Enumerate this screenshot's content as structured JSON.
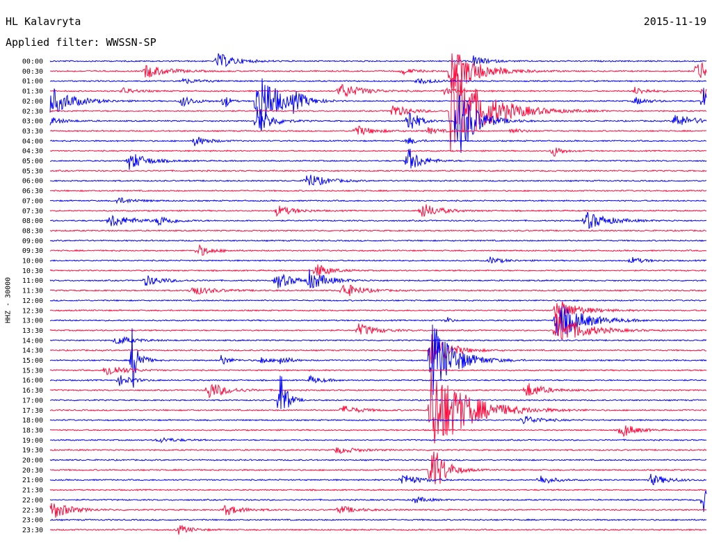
{
  "header": {
    "station": "HL Kalavryta",
    "filter": "Applied filter: WWSSN-SP",
    "date": "2015-11-19"
  },
  "axis": {
    "ylabel": "HHZ - 30000"
  },
  "colors": {
    "even_trace": "#0000ff",
    "odd_trace": "#ff0a3c",
    "background": "#ffffff",
    "text": "#000000"
  },
  "chart_data": {
    "type": "line",
    "title": "",
    "row_labels": [
      "00:00",
      "00:30",
      "01:00",
      "01:30",
      "02:00",
      "02:30",
      "03:00",
      "03:30",
      "04:00",
      "04:30",
      "05:00",
      "05:30",
      "06:00",
      "06:30",
      "07:00",
      "07:30",
      "08:00",
      "08:30",
      "09:00",
      "09:30",
      "10:00",
      "10:30",
      "11:00",
      "11:30",
      "12:00",
      "12:30",
      "13:00",
      "13:30",
      "14:00",
      "14:30",
      "15:00",
      "15:30",
      "16:00",
      "16:30",
      "17:00",
      "17:30",
      "18:00",
      "18:30",
      "19:00",
      "19:30",
      "20:00",
      "20:30",
      "21:00",
      "21:30",
      "22:00",
      "22:30",
      "23:00",
      "23:30"
    ],
    "x_range_minutes": [
      0,
      30
    ],
    "events": [
      {
        "row": 0,
        "t": 0.255,
        "amp": 12,
        "dur": 0.04
      },
      {
        "row": 0,
        "t": 0.645,
        "amp": 8,
        "dur": 0.03
      },
      {
        "row": 1,
        "t": 0.145,
        "amp": 10,
        "dur": 0.05
      },
      {
        "row": 1,
        "t": 0.535,
        "amp": 5,
        "dur": 0.03
      },
      {
        "row": 1,
        "t": 0.61,
        "amp": 35,
        "dur": 0.06
      },
      {
        "row": 1,
        "t": 0.985,
        "amp": 22,
        "dur": 0.02
      },
      {
        "row": 2,
        "t": 0.2,
        "amp": 4,
        "dur": 0.04
      },
      {
        "row": 2,
        "t": 0.56,
        "amp": 4,
        "dur": 0.04
      },
      {
        "row": 3,
        "t": 0.11,
        "amp": 5,
        "dur": 0.03
      },
      {
        "row": 3,
        "t": 0.44,
        "amp": 12,
        "dur": 0.05
      },
      {
        "row": 3,
        "t": 0.6,
        "amp": 5,
        "dur": 0.03
      },
      {
        "row": 3,
        "t": 0.89,
        "amp": 6,
        "dur": 0.03
      },
      {
        "row": 3,
        "t": 0.995,
        "amp": 20,
        "dur": 0.02
      },
      {
        "row": 4,
        "t": 0.0,
        "amp": 22,
        "dur": 0.05
      },
      {
        "row": 4,
        "t": 0.2,
        "amp": 8,
        "dur": 0.03
      },
      {
        "row": 4,
        "t": 0.265,
        "amp": 15,
        "dur": 0.01
      },
      {
        "row": 4,
        "t": 0.315,
        "amp": 60,
        "dur": 0.04
      },
      {
        "row": 4,
        "t": 0.37,
        "amp": 12,
        "dur": 0.03
      },
      {
        "row": 4,
        "t": 0.89,
        "amp": 6,
        "dur": 0.03
      },
      {
        "row": 4,
        "t": 0.995,
        "amp": 20,
        "dur": 0.02
      },
      {
        "row": 5,
        "t": 0.52,
        "amp": 10,
        "dur": 0.04
      },
      {
        "row": 5,
        "t": 0.61,
        "amp": 70,
        "dur": 0.08
      },
      {
        "row": 6,
        "t": 0.0,
        "amp": 6,
        "dur": 0.03
      },
      {
        "row": 6,
        "t": 0.315,
        "amp": 25,
        "dur": 0.03
      },
      {
        "row": 6,
        "t": 0.545,
        "amp": 25,
        "dur": 0.02
      },
      {
        "row": 6,
        "t": 0.62,
        "amp": 60,
        "dur": 0.04
      },
      {
        "row": 6,
        "t": 0.95,
        "amp": 10,
        "dur": 0.05
      },
      {
        "row": 7,
        "t": 0.465,
        "amp": 8,
        "dur": 0.04
      },
      {
        "row": 7,
        "t": 0.575,
        "amp": 5,
        "dur": 0.03
      },
      {
        "row": 7,
        "t": 0.7,
        "amp": 4,
        "dur": 0.03
      },
      {
        "row": 8,
        "t": 0.22,
        "amp": 8,
        "dur": 0.03
      },
      {
        "row": 8,
        "t": 0.545,
        "amp": 6,
        "dur": 0.02
      },
      {
        "row": 9,
        "t": 0.765,
        "amp": 10,
        "dur": 0.02
      },
      {
        "row": 10,
        "t": 0.12,
        "amp": 14,
        "dur": 0.04
      },
      {
        "row": 10,
        "t": 0.545,
        "amp": 20,
        "dur": 0.03
      },
      {
        "row": 12,
        "t": 0.39,
        "amp": 12,
        "dur": 0.04
      },
      {
        "row": 14,
        "t": 0.1,
        "amp": 5,
        "dur": 0.04
      },
      {
        "row": 15,
        "t": 0.345,
        "amp": 8,
        "dur": 0.04
      },
      {
        "row": 15,
        "t": 0.565,
        "amp": 12,
        "dur": 0.04
      },
      {
        "row": 16,
        "t": 0.09,
        "amp": 10,
        "dur": 0.05
      },
      {
        "row": 16,
        "t": 0.165,
        "amp": 8,
        "dur": 0.03
      },
      {
        "row": 16,
        "t": 0.815,
        "amp": 14,
        "dur": 0.05
      },
      {
        "row": 19,
        "t": 0.225,
        "amp": 9,
        "dur": 0.03
      },
      {
        "row": 20,
        "t": 0.67,
        "amp": 5,
        "dur": 0.03
      },
      {
        "row": 20,
        "t": 0.885,
        "amp": 5,
        "dur": 0.03
      },
      {
        "row": 21,
        "t": 0.405,
        "amp": 12,
        "dur": 0.03
      },
      {
        "row": 22,
        "t": 0.145,
        "amp": 8,
        "dur": 0.04
      },
      {
        "row": 22,
        "t": 0.345,
        "amp": 12,
        "dur": 0.04
      },
      {
        "row": 22,
        "t": 0.395,
        "amp": 14,
        "dur": 0.04
      },
      {
        "row": 23,
        "t": 0.215,
        "amp": 7,
        "dur": 0.05
      },
      {
        "row": 23,
        "t": 0.445,
        "amp": 12,
        "dur": 0.04
      },
      {
        "row": 25,
        "t": 0.77,
        "amp": 18,
        "dur": 0.05
      },
      {
        "row": 26,
        "t": 0.605,
        "amp": 5,
        "dur": 0.01
      },
      {
        "row": 26,
        "t": 0.77,
        "amp": 30,
        "dur": 0.06
      },
      {
        "row": 27,
        "t": 0.47,
        "amp": 10,
        "dur": 0.04
      },
      {
        "row": 27,
        "t": 0.77,
        "amp": 25,
        "dur": 0.06
      },
      {
        "row": 28,
        "t": 0.1,
        "amp": 7,
        "dur": 0.04
      },
      {
        "row": 29,
        "t": 0.58,
        "amp": 30,
        "dur": 0.04
      },
      {
        "row": 30,
        "t": 0.125,
        "amp": 50,
        "dur": 0.015
      },
      {
        "row": 30,
        "t": 0.26,
        "amp": 8,
        "dur": 0.02
      },
      {
        "row": 30,
        "t": 0.32,
        "amp": 6,
        "dur": 0.02
      },
      {
        "row": 30,
        "t": 0.35,
        "amp": 8,
        "dur": 0.02
      },
      {
        "row": 30,
        "t": 0.58,
        "amp": 60,
        "dur": 0.05
      },
      {
        "row": 31,
        "t": 0.085,
        "amp": 10,
        "dur": 0.04
      },
      {
        "row": 32,
        "t": 0.105,
        "amp": 8,
        "dur": 0.03
      },
      {
        "row": 32,
        "t": 0.395,
        "amp": 6,
        "dur": 0.03
      },
      {
        "row": 33,
        "t": 0.24,
        "amp": 14,
        "dur": 0.04
      },
      {
        "row": 33,
        "t": 0.725,
        "amp": 12,
        "dur": 0.04
      },
      {
        "row": 34,
        "t": 0.35,
        "amp": 50,
        "dur": 0.015
      },
      {
        "row": 35,
        "t": 0.445,
        "amp": 7,
        "dur": 0.04
      },
      {
        "row": 35,
        "t": 0.58,
        "amp": 70,
        "dur": 0.08
      },
      {
        "row": 36,
        "t": 0.72,
        "amp": 7,
        "dur": 0.04
      },
      {
        "row": 37,
        "t": 0.87,
        "amp": 12,
        "dur": 0.03
      },
      {
        "row": 38,
        "t": 0.165,
        "amp": 4,
        "dur": 0.04
      },
      {
        "row": 39,
        "t": 0.435,
        "amp": 5,
        "dur": 0.05
      },
      {
        "row": 41,
        "t": 0.58,
        "amp": 45,
        "dur": 0.03
      },
      {
        "row": 42,
        "t": 0.535,
        "amp": 9,
        "dur": 0.04
      },
      {
        "row": 42,
        "t": 0.745,
        "amp": 8,
        "dur": 0.03
      },
      {
        "row": 42,
        "t": 0.915,
        "amp": 8,
        "dur": 0.04
      },
      {
        "row": 44,
        "t": 0.555,
        "amp": 5,
        "dur": 0.03
      },
      {
        "row": 44,
        "t": 0.995,
        "amp": 18,
        "dur": 0.02
      },
      {
        "row": 45,
        "t": 0.0,
        "amp": 16,
        "dur": 0.04
      },
      {
        "row": 45,
        "t": 0.265,
        "amp": 8,
        "dur": 0.04
      },
      {
        "row": 45,
        "t": 0.44,
        "amp": 6,
        "dur": 0.04
      },
      {
        "row": 47,
        "t": 0.195,
        "amp": 7,
        "dur": 0.03
      }
    ]
  }
}
